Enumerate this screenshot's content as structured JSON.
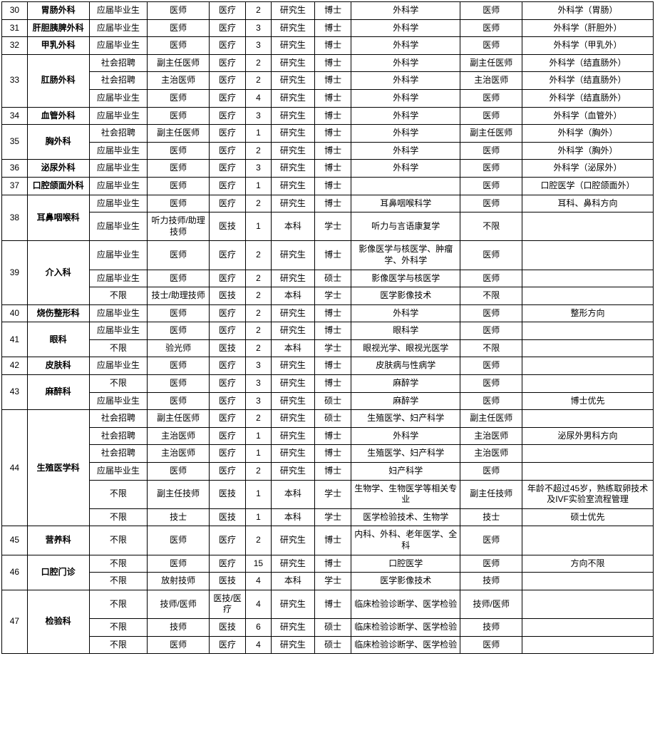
{
  "columns": [
    "idx",
    "dept",
    "src",
    "pos",
    "type",
    "num",
    "edu",
    "deg",
    "major",
    "cert",
    "note"
  ],
  "colClasses": [
    "col-idx",
    "col-dept",
    "col-src",
    "col-pos",
    "col-type",
    "col-num",
    "col-edu",
    "col-deg",
    "col-major",
    "col-cert",
    "col-note"
  ],
  "rows": [
    {
      "idx": "30",
      "dept": "胃肠外科",
      "src": "应届毕业生",
      "pos": "医师",
      "type": "医疗",
      "num": "2",
      "edu": "研究生",
      "deg": "博士",
      "major": "外科学",
      "cert": "医师",
      "note": "外科学（胃肠）"
    },
    {
      "idx": "31",
      "dept": "肝胆胰脾外科",
      "src": "应届毕业生",
      "pos": "医师",
      "type": "医疗",
      "num": "3",
      "edu": "研究生",
      "deg": "博士",
      "major": "外科学",
      "cert": "医师",
      "note": "外科学（肝胆外）"
    },
    {
      "idx": "32",
      "dept": "甲乳外科",
      "src": "应届毕业生",
      "pos": "医师",
      "type": "医疗",
      "num": "3",
      "edu": "研究生",
      "deg": "博士",
      "major": "外科学",
      "cert": "医师",
      "note": "外科学（甲乳外）"
    },
    {
      "idx": "33",
      "dept": "肛肠外科",
      "deptRowspan": 3,
      "src": "社会招聘",
      "pos": "副主任医师",
      "type": "医疗",
      "num": "2",
      "edu": "研究生",
      "deg": "博士",
      "major": "外科学",
      "cert": "副主任医师",
      "note": "外科学（结直肠外）"
    },
    {
      "src": "社会招聘",
      "pos": "主治医师",
      "type": "医疗",
      "num": "2",
      "edu": "研究生",
      "deg": "博士",
      "major": "外科学",
      "cert": "主治医师",
      "note": "外科学（结直肠外）"
    },
    {
      "src": "应届毕业生",
      "pos": "医师",
      "type": "医疗",
      "num": "4",
      "edu": "研究生",
      "deg": "博士",
      "major": "外科学",
      "cert": "医师",
      "note": "外科学（结直肠外）"
    },
    {
      "idx": "34",
      "dept": "血管外科",
      "src": "应届毕业生",
      "pos": "医师",
      "type": "医疗",
      "num": "3",
      "edu": "研究生",
      "deg": "博士",
      "major": "外科学",
      "cert": "医师",
      "note": "外科学（血管外）"
    },
    {
      "idx": "35",
      "dept": "胸外科",
      "deptRowspan": 2,
      "src": "社会招聘",
      "pos": "副主任医师",
      "type": "医疗",
      "num": "1",
      "edu": "研究生",
      "deg": "博士",
      "major": "外科学",
      "cert": "副主任医师",
      "note": "外科学（胸外）"
    },
    {
      "src": "应届毕业生",
      "pos": "医师",
      "type": "医疗",
      "num": "2",
      "edu": "研究生",
      "deg": "博士",
      "major": "外科学",
      "cert": "医师",
      "note": "外科学（胸外）"
    },
    {
      "idx": "36",
      "dept": "泌尿外科",
      "src": "应届毕业生",
      "pos": "医师",
      "type": "医疗",
      "num": "3",
      "edu": "研究生",
      "deg": "博士",
      "major": "外科学",
      "cert": "医师",
      "note": "外科学（泌尿外）"
    },
    {
      "idx": "37",
      "dept": "口腔颌面外科",
      "src": "应届毕业生",
      "pos": "医师",
      "type": "医疗",
      "num": "1",
      "edu": "研究生",
      "deg": "博士",
      "major": "",
      "cert": "医师",
      "note": "口腔医学（口腔颌面外）"
    },
    {
      "idx": "38",
      "dept": "耳鼻咽喉科",
      "deptRowspan": 2,
      "src": "应届毕业生",
      "pos": "医师",
      "type": "医疗",
      "num": "2",
      "edu": "研究生",
      "deg": "博士",
      "major": "耳鼻咽喉科学",
      "cert": "医师",
      "note": "耳科、鼻科方向"
    },
    {
      "src": "应届毕业生",
      "pos": "听力技师/助理技师",
      "type": "医技",
      "num": "1",
      "edu": "本科",
      "deg": "学士",
      "major": "听力与言语康复学",
      "cert": "不限",
      "note": ""
    },
    {
      "idx": "39",
      "dept": "介入科",
      "deptRowspan": 3,
      "src": "应届毕业生",
      "pos": "医师",
      "type": "医疗",
      "num": "2",
      "edu": "研究生",
      "deg": "博士",
      "major": "影像医学与核医学、肿瘤学、外科学",
      "cert": "医师",
      "note": ""
    },
    {
      "src": "应届毕业生",
      "pos": "医师",
      "type": "医疗",
      "num": "2",
      "edu": "研究生",
      "deg": "硕士",
      "major": "影像医学与核医学",
      "cert": "医师",
      "note": ""
    },
    {
      "src": "不限",
      "pos": "技士/助理技师",
      "type": "医技",
      "num": "2",
      "edu": "本科",
      "deg": "学士",
      "major": "医学影像技术",
      "cert": "不限",
      "note": ""
    },
    {
      "idx": "40",
      "dept": "烧伤整形科",
      "src": "应届毕业生",
      "pos": "医师",
      "type": "医疗",
      "num": "2",
      "edu": "研究生",
      "deg": "博士",
      "major": "外科学",
      "cert": "医师",
      "note": "整形方向"
    },
    {
      "idx": "41",
      "dept": "眼科",
      "deptRowspan": 2,
      "src": "应届毕业生",
      "pos": "医师",
      "type": "医疗",
      "num": "2",
      "edu": "研究生",
      "deg": "博士",
      "major": "眼科学",
      "cert": "医师",
      "note": ""
    },
    {
      "src": "不限",
      "pos": "验光师",
      "type": "医技",
      "num": "2",
      "edu": "本科",
      "deg": "学士",
      "major": "眼视光学、眼视光医学",
      "cert": "不限",
      "note": ""
    },
    {
      "idx": "42",
      "dept": "皮肤科",
      "src": "应届毕业生",
      "pos": "医师",
      "type": "医疗",
      "num": "3",
      "edu": "研究生",
      "deg": "博士",
      "major": "皮肤病与性病学",
      "cert": "医师",
      "note": ""
    },
    {
      "idx": "43",
      "dept": "麻醉科",
      "deptRowspan": 2,
      "src": "不限",
      "pos": "医师",
      "type": "医疗",
      "num": "3",
      "edu": "研究生",
      "deg": "博士",
      "major": "麻醉学",
      "cert": "医师",
      "note": ""
    },
    {
      "src": "应届毕业生",
      "pos": "医师",
      "type": "医疗",
      "num": "3",
      "edu": "研究生",
      "deg": "硕士",
      "major": "麻醉学",
      "cert": "医师",
      "note": "博士优先"
    },
    {
      "idx": "44",
      "dept": "生殖医学科",
      "deptRowspan": 6,
      "src": "社会招聘",
      "pos": "副主任医师",
      "type": "医疗",
      "num": "2",
      "edu": "研究生",
      "deg": "硕士",
      "major": "生殖医学、妇产科学",
      "cert": "副主任医师",
      "note": ""
    },
    {
      "src": "社会招聘",
      "pos": "主治医师",
      "type": "医疗",
      "num": "1",
      "edu": "研究生",
      "deg": "博士",
      "major": "外科学",
      "cert": "主治医师",
      "note": "泌尿外男科方向"
    },
    {
      "src": "社会招聘",
      "pos": "主治医师",
      "type": "医疗",
      "num": "1",
      "edu": "研究生",
      "deg": "博士",
      "major": "生殖医学、妇产科学",
      "cert": "主治医师",
      "note": ""
    },
    {
      "src": "应届毕业生",
      "pos": "医师",
      "type": "医疗",
      "num": "2",
      "edu": "研究生",
      "deg": "博士",
      "major": "妇产科学",
      "cert": "医师",
      "note": ""
    },
    {
      "src": "不限",
      "pos": "副主任技师",
      "type": "医技",
      "num": "1",
      "edu": "本科",
      "deg": "学士",
      "major": "生物学、生物医学等相关专业",
      "cert": "副主任技师",
      "note": "年龄不超过45岁，熟练取卵技术及IVF实验室流程管理"
    },
    {
      "src": "不限",
      "pos": "技士",
      "type": "医技",
      "num": "1",
      "edu": "本科",
      "deg": "学士",
      "major": "医学检验技术、生物学",
      "cert": "技士",
      "note": "硕士优先"
    },
    {
      "idx": "45",
      "dept": "营养科",
      "src": "不限",
      "pos": "医师",
      "type": "医疗",
      "num": "2",
      "edu": "研究生",
      "deg": "博士",
      "major": "内科、外科、老年医学、全科",
      "cert": "医师",
      "note": ""
    },
    {
      "idx": "46",
      "dept": "口腔门诊",
      "deptRowspan": 2,
      "src": "不限",
      "pos": "医师",
      "type": "医疗",
      "num": "15",
      "edu": "研究生",
      "deg": "博士",
      "major": "口腔医学",
      "cert": "医师",
      "note": "方向不限"
    },
    {
      "src": "不限",
      "pos": "放射技师",
      "type": "医技",
      "num": "4",
      "edu": "本科",
      "deg": "学士",
      "major": "医学影像技术",
      "cert": "技师",
      "note": ""
    },
    {
      "idx": "47",
      "dept": "检验科",
      "deptRowspan": 3,
      "src": "不限",
      "pos": "技师/医师",
      "type": "医技/医疗",
      "num": "4",
      "edu": "研究生",
      "deg": "博士",
      "major": "临床检验诊断学、医学检验",
      "cert": "技师/医师",
      "note": ""
    },
    {
      "src": "不限",
      "pos": "技师",
      "type": "医技",
      "num": "6",
      "edu": "研究生",
      "deg": "硕士",
      "major": "临床检验诊断学、医学检验",
      "cert": "技师",
      "note": ""
    },
    {
      "src": "不限",
      "pos": "医师",
      "type": "医疗",
      "num": "4",
      "edu": "研究生",
      "deg": "硕士",
      "major": "临床检验诊断学、医学检验",
      "cert": "医师",
      "note": ""
    }
  ]
}
